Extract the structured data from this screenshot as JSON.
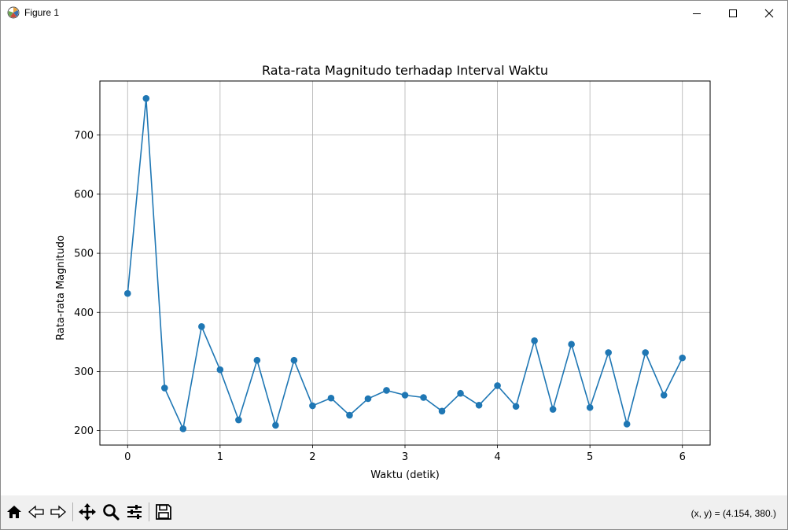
{
  "window": {
    "title": "Figure 1"
  },
  "toolbar": {
    "items": [
      "home-icon",
      "back-arrow-icon",
      "forward-arrow-icon",
      "pan-icon",
      "zoom-icon",
      "configure-subplots-icon",
      "save-icon"
    ],
    "coordinates": "(x, y) = (4.154, 380.)"
  },
  "chart_data": {
    "type": "line",
    "title": "Rata-rata Magnitudo terhadap Interval Waktu",
    "xlabel": "Waktu (detik)",
    "ylabel": "Rata-rata Magnitudo",
    "x": [
      0,
      0.2,
      0.4,
      0.6,
      0.8,
      1.0,
      1.2,
      1.4,
      1.6,
      1.8,
      2.0,
      2.2,
      2.4,
      2.6,
      2.8,
      3.0,
      3.2,
      3.4,
      3.6,
      3.8,
      4.0,
      4.2,
      4.4,
      4.6,
      4.8,
      5.0,
      5.2,
      5.4,
      5.6,
      5.8,
      6.0
    ],
    "series": [
      {
        "values": [
          432,
          762,
          272,
          203,
          376,
          303,
          218,
          319,
          209,
          319,
          242,
          255,
          226,
          254,
          268,
          260,
          256,
          233,
          263,
          243,
          276,
          241,
          352,
          236,
          346,
          239,
          332,
          211,
          332,
          260,
          323
        ],
        "color": "#1f77b4",
        "marker": "circle"
      }
    ],
    "xticks": [
      "0",
      "1",
      "2",
      "3",
      "4",
      "5",
      "6"
    ],
    "yticks": [
      "200",
      "300",
      "400",
      "500",
      "600",
      "700"
    ],
    "xlim": [
      -0.3,
      6.3
    ],
    "ylim": [
      175.5,
      791.5
    ],
    "grid": true
  }
}
